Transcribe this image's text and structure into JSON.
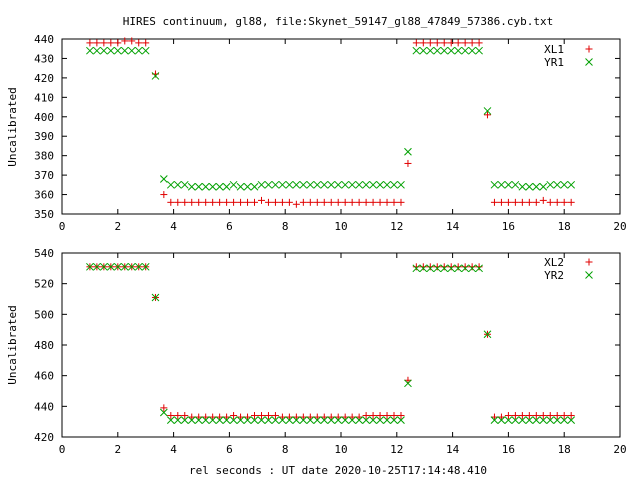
{
  "title": "HIRES continuum, gl88, file:Skynet_59147_gl88_47849_57386.cyb.txt",
  "xlabel": "rel seconds : UT date 2020-10-25T17:14:48.410",
  "colors": {
    "series1": "#e00000",
    "series2": "#00a000",
    "axis": "#000000"
  },
  "chart_data": [
    {
      "type": "scatter",
      "ylabel": "Uncalibrated",
      "xlim": [
        0,
        20
      ],
      "ylim": [
        350,
        440
      ],
      "xticks": [
        0,
        2,
        4,
        6,
        8,
        10,
        12,
        14,
        16,
        18,
        20
      ],
      "yticks": [
        350,
        360,
        370,
        380,
        390,
        400,
        410,
        420,
        430,
        440
      ],
      "legend_position": "top-right",
      "series": [
        {
          "name": "XL1",
          "marker": "plus",
          "x": [
            1.0,
            1.25,
            1.5,
            1.75,
            2.0,
            2.25,
            2.5,
            2.75,
            3.0,
            3.35,
            3.65,
            3.9,
            4.15,
            4.4,
            4.65,
            4.9,
            5.15,
            5.4,
            5.65,
            5.9,
            6.15,
            6.4,
            6.65,
            6.9,
            7.15,
            7.4,
            7.65,
            7.9,
            8.15,
            8.4,
            8.65,
            8.9,
            9.15,
            9.4,
            9.65,
            9.9,
            10.15,
            10.4,
            10.65,
            10.9,
            11.15,
            11.4,
            11.65,
            11.9,
            12.15,
            12.4,
            12.7,
            12.95,
            13.2,
            13.45,
            13.7,
            13.95,
            14.2,
            14.45,
            14.7,
            14.95,
            15.25,
            15.5,
            15.75,
            16.0,
            16.25,
            16.5,
            16.75,
            17.0,
            17.25,
            17.5,
            17.75,
            18.0,
            18.25
          ],
          "y": [
            438,
            438,
            438,
            438,
            438,
            439,
            439,
            438,
            438,
            422,
            360,
            356,
            356,
            356,
            356,
            356,
            356,
            356,
            356,
            356,
            356,
            356,
            356,
            356,
            357,
            356,
            356,
            356,
            356,
            355,
            356,
            356,
            356,
            356,
            356,
            356,
            356,
            356,
            356,
            356,
            356,
            356,
            356,
            356,
            356,
            376,
            438,
            438,
            438,
            438,
            438,
            438,
            438,
            438,
            438,
            438,
            401,
            356,
            356,
            356,
            356,
            356,
            356,
            356,
            357,
            356,
            356,
            356,
            356
          ]
        },
        {
          "name": "YR1",
          "marker": "cross",
          "x": [
            1.0,
            1.25,
            1.5,
            1.75,
            2.0,
            2.25,
            2.5,
            2.75,
            3.0,
            3.35,
            3.65,
            3.9,
            4.15,
            4.4,
            4.65,
            4.9,
            5.15,
            5.4,
            5.65,
            5.9,
            6.15,
            6.4,
            6.65,
            6.9,
            7.15,
            7.4,
            7.65,
            7.9,
            8.15,
            8.4,
            8.65,
            8.9,
            9.15,
            9.4,
            9.65,
            9.9,
            10.15,
            10.4,
            10.65,
            10.9,
            11.15,
            11.4,
            11.65,
            11.9,
            12.15,
            12.4,
            12.7,
            12.95,
            13.2,
            13.45,
            13.7,
            13.95,
            14.2,
            14.45,
            14.7,
            14.95,
            15.25,
            15.5,
            15.75,
            16.0,
            16.25,
            16.5,
            16.75,
            17.0,
            17.25,
            17.5,
            17.75,
            18.0,
            18.25
          ],
          "y": [
            434,
            434,
            434,
            434,
            434,
            434,
            434,
            434,
            434,
            421,
            368,
            365,
            365,
            365,
            364,
            364,
            364,
            364,
            364,
            364,
            365,
            364,
            364,
            364,
            365,
            365,
            365,
            365,
            365,
            365,
            365,
            365,
            365,
            365,
            365,
            365,
            365,
            365,
            365,
            365,
            365,
            365,
            365,
            365,
            365,
            382,
            434,
            434,
            434,
            434,
            434,
            434,
            434,
            434,
            434,
            434,
            403,
            365,
            365,
            365,
            365,
            364,
            364,
            364,
            364,
            365,
            365,
            365,
            365
          ]
        }
      ]
    },
    {
      "type": "scatter",
      "ylabel": "Uncalibrated",
      "xlim": [
        0,
        20
      ],
      "ylim": [
        420,
        540
      ],
      "xticks": [
        0,
        2,
        4,
        6,
        8,
        10,
        12,
        14,
        16,
        18,
        20
      ],
      "yticks": [
        420,
        440,
        460,
        480,
        500,
        520,
        540
      ],
      "legend_position": "top-right",
      "series": [
        {
          "name": "XL2",
          "marker": "plus",
          "x": [
            1.0,
            1.25,
            1.5,
            1.75,
            2.0,
            2.25,
            2.5,
            2.75,
            3.0,
            3.35,
            3.65,
            3.9,
            4.15,
            4.4,
            4.65,
            4.9,
            5.15,
            5.4,
            5.65,
            5.9,
            6.15,
            6.4,
            6.65,
            6.9,
            7.15,
            7.4,
            7.65,
            7.9,
            8.15,
            8.4,
            8.65,
            8.9,
            9.15,
            9.4,
            9.65,
            9.9,
            10.15,
            10.4,
            10.65,
            10.9,
            11.15,
            11.4,
            11.65,
            11.9,
            12.15,
            12.4,
            12.7,
            12.95,
            13.2,
            13.45,
            13.7,
            13.95,
            14.2,
            14.45,
            14.7,
            14.95,
            15.25,
            15.5,
            15.75,
            16.0,
            16.25,
            16.5,
            16.75,
            17.0,
            17.25,
            17.5,
            17.75,
            18.0,
            18.25
          ],
          "y": [
            531,
            531,
            531,
            531,
            531,
            531,
            531,
            531,
            531,
            511,
            439,
            434,
            434,
            434,
            433,
            433,
            433,
            433,
            433,
            433,
            434,
            433,
            433,
            434,
            434,
            434,
            434,
            433,
            433,
            433,
            433,
            433,
            433,
            433,
            433,
            433,
            433,
            433,
            433,
            434,
            434,
            434,
            434,
            434,
            434,
            457,
            531,
            531,
            531,
            531,
            531,
            531,
            531,
            531,
            531,
            531,
            487,
            433,
            433,
            434,
            434,
            434,
            434,
            434,
            434,
            434,
            434,
            434,
            434
          ]
        },
        {
          "name": "YR2",
          "marker": "cross",
          "x": [
            1.0,
            1.25,
            1.5,
            1.75,
            2.0,
            2.25,
            2.5,
            2.75,
            3.0,
            3.35,
            3.65,
            3.9,
            4.15,
            4.4,
            4.65,
            4.9,
            5.15,
            5.4,
            5.65,
            5.9,
            6.15,
            6.4,
            6.65,
            6.9,
            7.15,
            7.4,
            7.65,
            7.9,
            8.15,
            8.4,
            8.65,
            8.9,
            9.15,
            9.4,
            9.65,
            9.9,
            10.15,
            10.4,
            10.65,
            10.9,
            11.15,
            11.4,
            11.65,
            11.9,
            12.15,
            12.4,
            12.7,
            12.95,
            13.2,
            13.45,
            13.7,
            13.95,
            14.2,
            14.45,
            14.7,
            14.95,
            15.25,
            15.5,
            15.75,
            16.0,
            16.25,
            16.5,
            16.75,
            17.0,
            17.25,
            17.5,
            17.75,
            18.0,
            18.25
          ],
          "y": [
            531,
            531,
            531,
            531,
            531,
            531,
            531,
            531,
            531,
            511,
            436,
            431,
            431,
            431,
            431,
            431,
            431,
            431,
            431,
            431,
            431,
            431,
            431,
            431,
            431,
            431,
            431,
            431,
            431,
            431,
            431,
            431,
            431,
            431,
            431,
            431,
            431,
            431,
            431,
            431,
            431,
            431,
            431,
            431,
            431,
            455,
            530,
            530,
            530,
            530,
            530,
            530,
            530,
            530,
            530,
            530,
            487,
            431,
            431,
            431,
            431,
            431,
            431,
            431,
            431,
            431,
            431,
            431,
            431
          ]
        }
      ]
    }
  ]
}
